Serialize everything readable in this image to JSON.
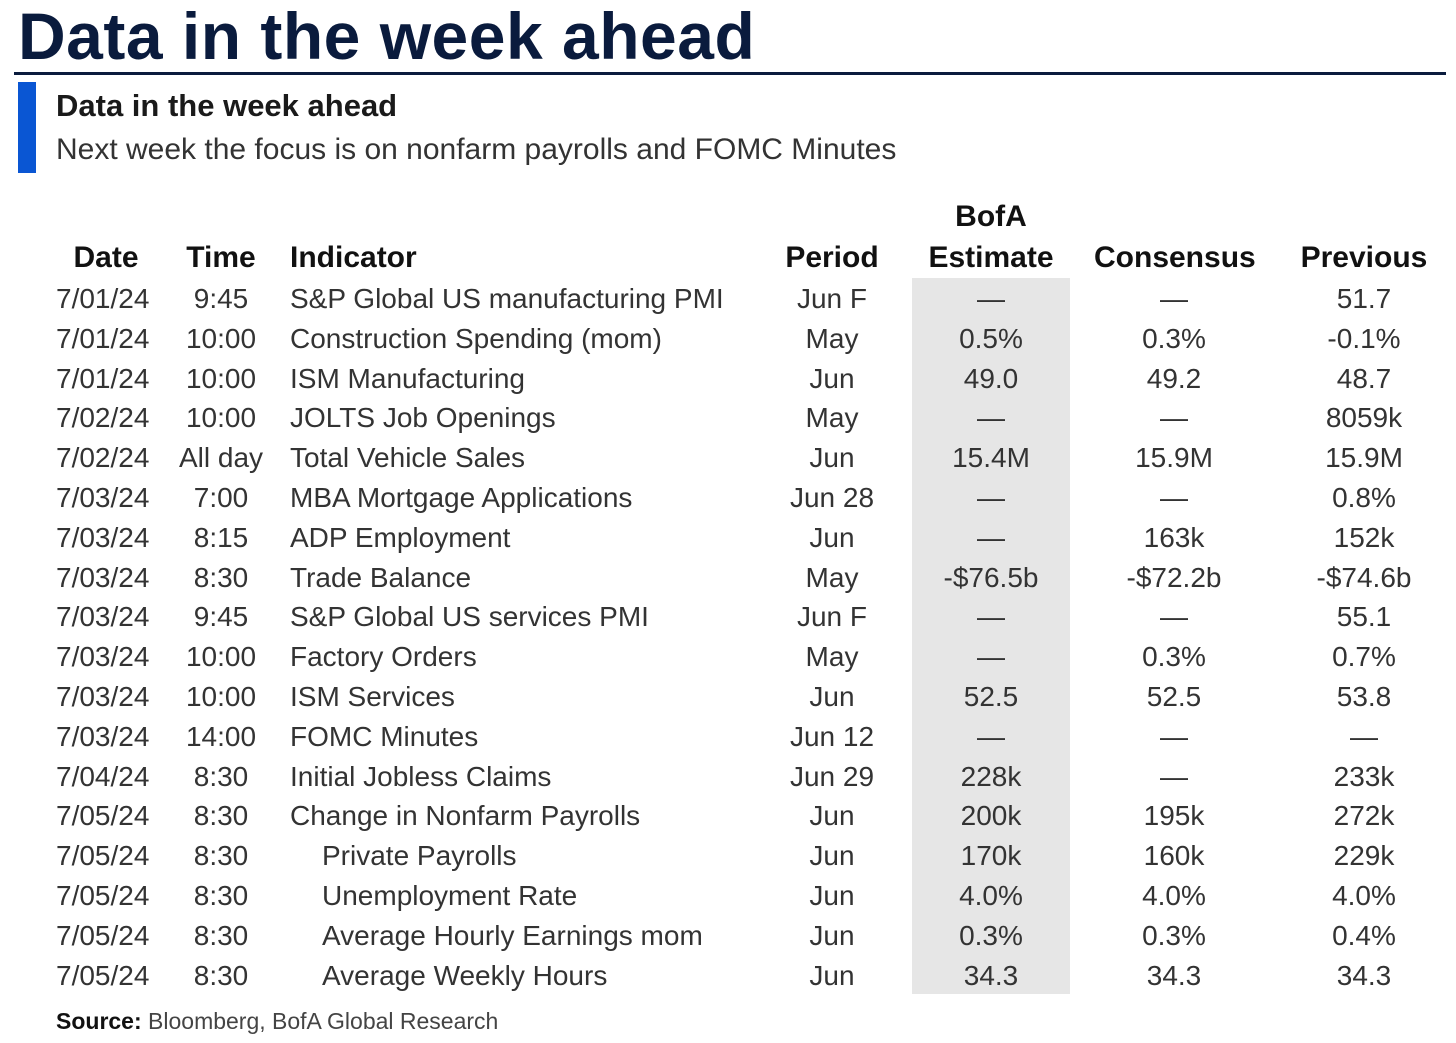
{
  "page_title": "Data in the week ahead",
  "subtitle": "Data in the week ahead",
  "description": "Next week the focus is on nonfarm payrolls and FOMC Minutes",
  "columns": {
    "date": "Date",
    "time": "Time",
    "indicator": "Indicator",
    "period": "Period",
    "estimate_line1": "BofA",
    "estimate_line2": "Estimate",
    "consensus": "Consensus",
    "previous": "Previous"
  },
  "rows": [
    {
      "date": "7/01/24",
      "time": "9:45",
      "indicator": "S&P Global US manufacturing PMI",
      "indent": false,
      "period": "Jun F",
      "estimate": "—",
      "consensus": "—",
      "previous": "51.7"
    },
    {
      "date": "7/01/24",
      "time": "10:00",
      "indicator": "Construction Spending (mom)",
      "indent": false,
      "period": "May",
      "estimate": "0.5%",
      "consensus": "0.3%",
      "previous": "-0.1%"
    },
    {
      "date": "7/01/24",
      "time": "10:00",
      "indicator": "ISM Manufacturing",
      "indent": false,
      "period": "Jun",
      "estimate": "49.0",
      "consensus": "49.2",
      "previous": "48.7"
    },
    {
      "date": "7/02/24",
      "time": "10:00",
      "indicator": "JOLTS Job Openings",
      "indent": false,
      "period": "May",
      "estimate": "—",
      "consensus": "—",
      "previous": "8059k"
    },
    {
      "date": "7/02/24",
      "time": "All day",
      "indicator": "Total Vehicle Sales",
      "indent": false,
      "period": "Jun",
      "estimate": "15.4M",
      "consensus": "15.9M",
      "previous": "15.9M"
    },
    {
      "date": "7/03/24",
      "time": "7:00",
      "indicator": "MBA Mortgage Applications",
      "indent": false,
      "period": "Jun 28",
      "estimate": "—",
      "consensus": "—",
      "previous": "0.8%"
    },
    {
      "date": "7/03/24",
      "time": "8:15",
      "indicator": "ADP Employment",
      "indent": false,
      "period": "Jun",
      "estimate": "—",
      "consensus": "163k",
      "previous": "152k"
    },
    {
      "date": "7/03/24",
      "time": "8:30",
      "indicator": "Trade Balance",
      "indent": false,
      "period": "May",
      "estimate": "-$76.5b",
      "consensus": "-$72.2b",
      "previous": "-$74.6b"
    },
    {
      "date": "7/03/24",
      "time": "9:45",
      "indicator": "S&P Global US services PMI",
      "indent": false,
      "period": "Jun F",
      "estimate": "—",
      "consensus": "—",
      "previous": "55.1"
    },
    {
      "date": "7/03/24",
      "time": "10:00",
      "indicator": "Factory Orders",
      "indent": false,
      "period": "May",
      "estimate": "—",
      "consensus": "0.3%",
      "previous": "0.7%"
    },
    {
      "date": "7/03/24",
      "time": "10:00",
      "indicator": "ISM Services",
      "indent": false,
      "period": "Jun",
      "estimate": "52.5",
      "consensus": "52.5",
      "previous": "53.8"
    },
    {
      "date": "7/03/24",
      "time": "14:00",
      "indicator": "FOMC Minutes",
      "indent": false,
      "period": "Jun 12",
      "estimate": "—",
      "consensus": "—",
      "previous": "—"
    },
    {
      "date": "7/04/24",
      "time": "8:30",
      "indicator": "Initial Jobless Claims",
      "indent": false,
      "period": "Jun 29",
      "estimate": "228k",
      "consensus": "—",
      "previous": "233k"
    },
    {
      "date": "7/05/24",
      "time": "8:30",
      "indicator": "Change in Nonfarm Payrolls",
      "indent": false,
      "period": "Jun",
      "estimate": "200k",
      "consensus": "195k",
      "previous": "272k"
    },
    {
      "date": "7/05/24",
      "time": "8:30",
      "indicator": "Private Payrolls",
      "indent": true,
      "period": "Jun",
      "estimate": "170k",
      "consensus": "160k",
      "previous": "229k"
    },
    {
      "date": "7/05/24",
      "time": "8:30",
      "indicator": "Unemployment Rate",
      "indent": true,
      "period": "Jun",
      "estimate": "4.0%",
      "consensus": "4.0%",
      "previous": "4.0%"
    },
    {
      "date": "7/05/24",
      "time": "8:30",
      "indicator": "Average Hourly Earnings mom",
      "indent": true,
      "period": "Jun",
      "estimate": "0.3%",
      "consensus": "0.3%",
      "previous": "0.4%"
    },
    {
      "date": "7/05/24",
      "time": "8:30",
      "indicator": "Average Weekly Hours",
      "indent": true,
      "period": "Jun",
      "estimate": "34.3",
      "consensus": "34.3",
      "previous": "34.3"
    }
  ],
  "source": {
    "label": "Source:",
    "text": " Bloomberg, BofA Global Research"
  },
  "colors": {
    "title": "#0a1b3d",
    "accent_bar": "#0a56d3",
    "estimate_column_bg": "#e6e6e6"
  }
}
